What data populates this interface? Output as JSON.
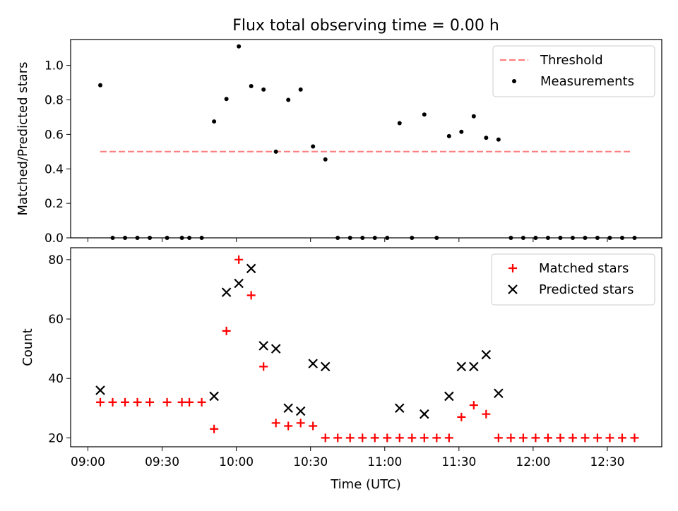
{
  "figure": {
    "title": "Flux total observing time = 0.00 h",
    "xlabel": "Time (UTC)",
    "x_tick_labels": [
      "09:00",
      "09:30",
      "10:00",
      "10:30",
      "11:00",
      "11:30",
      "12:00",
      "12:30"
    ]
  },
  "chart_data": [
    {
      "type": "scatter",
      "panel": "top",
      "ylabel": "Matched/Predicted stars",
      "ylim": [
        0,
        1.15
      ],
      "y_ticks": [
        0.0,
        0.2,
        0.4,
        0.6,
        0.8,
        1.0
      ],
      "y_tick_labels": [
        "0.0",
        "0.2",
        "0.4",
        "0.6",
        "0.8",
        "1.0"
      ],
      "x_ticks": [
        "09:00",
        "09:30",
        "10:00",
        "10:30",
        "11:00",
        "11:30",
        "12:00",
        "12:30"
      ],
      "legend_position": "top-right",
      "threshold": {
        "name": "Threshold",
        "value": 0.5,
        "x_start": "09:05",
        "x_end": "12:40",
        "color": "#ff7f7f",
        "style": "dashed"
      },
      "series": [
        {
          "name": "Measurements",
          "color": "#000000",
          "marker": "dot",
          "points": [
            [
              "09:05",
              0.885
            ],
            [
              "09:10",
              0.0
            ],
            [
              "09:15",
              0.0
            ],
            [
              "09:20",
              0.0
            ],
            [
              "09:25",
              0.0
            ],
            [
              "09:32",
              0.0
            ],
            [
              "09:38",
              0.0
            ],
            [
              "09:41",
              0.0
            ],
            [
              "09:46",
              0.0
            ],
            [
              "09:51",
              0.675
            ],
            [
              "09:56",
              0.805
            ],
            [
              "10:01",
              1.11
            ],
            [
              "10:06",
              0.88
            ],
            [
              "10:11",
              0.86
            ],
            [
              "10:16",
              0.5
            ],
            [
              "10:21",
              0.8
            ],
            [
              "10:26",
              0.86
            ],
            [
              "10:31",
              0.53
            ],
            [
              "10:36",
              0.455
            ],
            [
              "10:41",
              0.0
            ],
            [
              "10:46",
              0.0
            ],
            [
              "10:51",
              0.0
            ],
            [
              "10:56",
              0.0
            ],
            [
              "11:01",
              0.0
            ],
            [
              "11:06",
              0.665
            ],
            [
              "11:11",
              0.0
            ],
            [
              "11:16",
              0.715
            ],
            [
              "11:21",
              0.0
            ],
            [
              "11:26",
              0.59
            ],
            [
              "11:31",
              0.615
            ],
            [
              "11:36",
              0.705
            ],
            [
              "11:41",
              0.58
            ],
            [
              "11:46",
              0.57
            ],
            [
              "11:51",
              0.0
            ],
            [
              "11:56",
              0.0
            ],
            [
              "12:01",
              0.0
            ],
            [
              "12:06",
              0.0
            ],
            [
              "12:11",
              0.0
            ],
            [
              "12:16",
              0.0
            ],
            [
              "12:21",
              0.0
            ],
            [
              "12:26",
              0.0
            ],
            [
              "12:31",
              0.0
            ],
            [
              "12:36",
              0.0
            ],
            [
              "12:41",
              0.0
            ]
          ]
        }
      ]
    },
    {
      "type": "scatter",
      "panel": "bottom",
      "ylabel": "Count",
      "ylim": [
        17,
        84
      ],
      "y_ticks": [
        20,
        40,
        60,
        80
      ],
      "y_tick_labels": [
        "20",
        "40",
        "60",
        "80"
      ],
      "x_ticks": [
        "09:00",
        "09:30",
        "10:00",
        "10:30",
        "11:00",
        "11:30",
        "12:00",
        "12:30"
      ],
      "legend_position": "top-right",
      "series": [
        {
          "name": "Matched stars",
          "color": "#ff0000",
          "marker": "plus",
          "points": [
            [
              "09:05",
              32
            ],
            [
              "09:10",
              32
            ],
            [
              "09:15",
              32
            ],
            [
              "09:20",
              32
            ],
            [
              "09:25",
              32
            ],
            [
              "09:32",
              32
            ],
            [
              "09:38",
              32
            ],
            [
              "09:41",
              32
            ],
            [
              "09:46",
              32
            ],
            [
              "09:51",
              23
            ],
            [
              "09:56",
              56
            ],
            [
              "10:01",
              80
            ],
            [
              "10:06",
              68
            ],
            [
              "10:11",
              44
            ],
            [
              "10:16",
              25
            ],
            [
              "10:21",
              24
            ],
            [
              "10:26",
              25
            ],
            [
              "10:31",
              24
            ],
            [
              "10:36",
              20
            ],
            [
              "10:41",
              20
            ],
            [
              "10:46",
              20
            ],
            [
              "10:51",
              20
            ],
            [
              "10:56",
              20
            ],
            [
              "11:01",
              20
            ],
            [
              "11:06",
              20
            ],
            [
              "11:11",
              20
            ],
            [
              "11:16",
              20
            ],
            [
              "11:21",
              20
            ],
            [
              "11:26",
              20
            ],
            [
              "11:31",
              27
            ],
            [
              "11:36",
              31
            ],
            [
              "11:41",
              28
            ],
            [
              "11:46",
              20
            ],
            [
              "11:51",
              20
            ],
            [
              "11:56",
              20
            ],
            [
              "12:01",
              20
            ],
            [
              "12:06",
              20
            ],
            [
              "12:11",
              20
            ],
            [
              "12:16",
              20
            ],
            [
              "12:21",
              20
            ],
            [
              "12:26",
              20
            ],
            [
              "12:31",
              20
            ],
            [
              "12:36",
              20
            ],
            [
              "12:41",
              20
            ]
          ]
        },
        {
          "name": "Predicted stars",
          "color": "#000000",
          "marker": "x",
          "points": [
            [
              "09:05",
              36
            ],
            [
              "09:51",
              34
            ],
            [
              "09:56",
              69
            ],
            [
              "10:01",
              72
            ],
            [
              "10:06",
              77
            ],
            [
              "10:11",
              51
            ],
            [
              "10:16",
              50
            ],
            [
              "10:21",
              30
            ],
            [
              "10:26",
              29
            ],
            [
              "10:31",
              45
            ],
            [
              "10:36",
              44
            ],
            [
              "11:06",
              30
            ],
            [
              "11:16",
              28
            ],
            [
              "11:26",
              34
            ],
            [
              "11:31",
              44
            ],
            [
              "11:36",
              44
            ],
            [
              "11:41",
              48
            ],
            [
              "11:46",
              35
            ]
          ]
        }
      ]
    }
  ]
}
